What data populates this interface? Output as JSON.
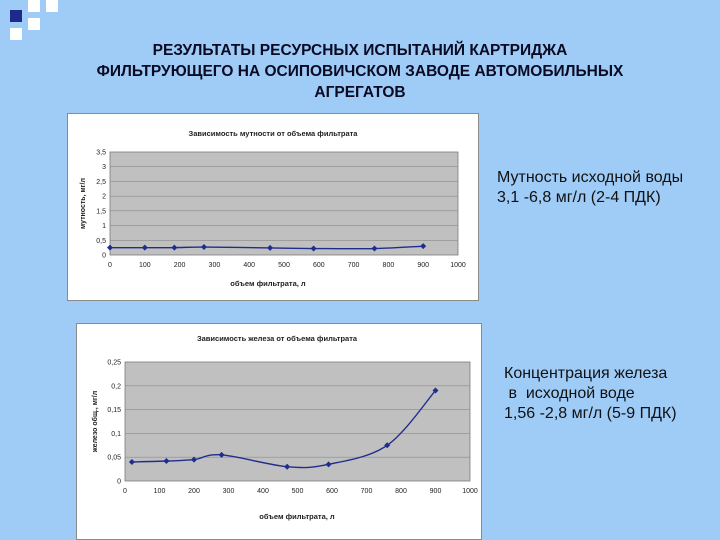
{
  "slide": {
    "title_lines": [
      "РЕЗУЛЬТАТЫ РЕСУРСНЫХ ИСПЫТАНИЙ КАРТРИДЖА",
      "ФИЛЬТРУЮЩЕГО НА ОСИПОВИЧСКОМ ЗАВОДЕ АВТОМОБИЛЬНЫХ",
      "АГРЕГАТОВ"
    ],
    "note1_lines": [
      "Мутность исходной воды",
      "3,1 -6,8 мг/л (2-4 ПДК)"
    ],
    "note2_lines": [
      "Концентрация железа",
      " в  исходной воде",
      "1,56 -2,8 мг/л (5-9 ПДК)"
    ],
    "colors": {
      "background": "#9fcbf7",
      "plot_area": "#c0c0c0",
      "series": "#1f2d8c",
      "accent_squares": [
        "#1c2a8c",
        "#ffffff"
      ]
    }
  },
  "chart_data": [
    {
      "type": "line",
      "title": "Зависимость мутности от объема фильтрата",
      "xlabel": "объем фильтрата, л",
      "ylabel": "мутность, мг/л",
      "xlim": [
        0,
        1000
      ],
      "ylim": [
        0,
        3.5
      ],
      "xticks": [
        0,
        100,
        200,
        300,
        400,
        500,
        600,
        700,
        800,
        900,
        1000
      ],
      "yticks": [
        0,
        0.5,
        1,
        1.5,
        2,
        2.5,
        3,
        3.5
      ],
      "xtick_labels": [
        "0",
        "100",
        "200",
        "300",
        "400",
        "500",
        "600",
        "700",
        "800",
        "900",
        "1000"
      ],
      "ytick_labels": [
        "0",
        "0,5",
        "1",
        "1,5",
        "2",
        "2,5",
        "3",
        "3,5"
      ],
      "grid": true,
      "series": [
        {
          "x": [
            0,
            100,
            185,
            270,
            460,
            585,
            760,
            900
          ],
          "y": [
            0.25,
            0.25,
            0.25,
            0.27,
            0.24,
            0.22,
            0.22,
            0.3
          ]
        }
      ]
    },
    {
      "type": "line",
      "title": "Зависимость железа от объема фильтрата",
      "xlabel": "объем фильтрата, л",
      "ylabel": "железо общ., мг/л",
      "xlim": [
        0,
        1000
      ],
      "ylim": [
        0,
        0.25
      ],
      "xticks": [
        0,
        100,
        200,
        300,
        400,
        500,
        600,
        700,
        800,
        900,
        1000
      ],
      "yticks": [
        0,
        0.05,
        0.1,
        0.15,
        0.2,
        0.25
      ],
      "xtick_labels": [
        "0",
        "100",
        "200",
        "300",
        "400",
        "500",
        "600",
        "700",
        "800",
        "900",
        "1000"
      ],
      "ytick_labels": [
        "0",
        "0,05",
        "0,1",
        "0,15",
        "0,2",
        "0,25"
      ],
      "grid": true,
      "series": [
        {
          "x": [
            20,
            120,
            200,
            280,
            470,
            590,
            760,
            900
          ],
          "y": [
            0.04,
            0.042,
            0.045,
            0.055,
            0.03,
            0.035,
            0.075,
            0.19
          ]
        }
      ]
    }
  ]
}
